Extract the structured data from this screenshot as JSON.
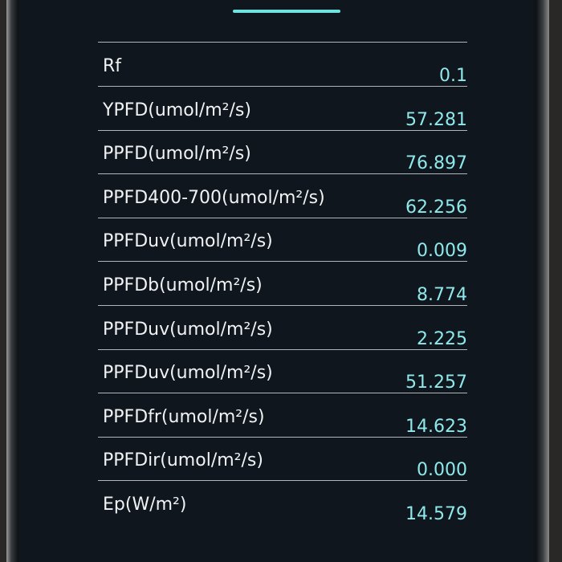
{
  "rows": [
    {
      "label": "Rf",
      "value": "0.1"
    },
    {
      "label": "YPFD(umol/m²/s)",
      "value": "57.281"
    },
    {
      "label": "PPFD(umol/m²/s)",
      "value": "76.897"
    },
    {
      "label": "PPFD400-700(umol/m²/s)",
      "value": "62.256"
    },
    {
      "label": "PPFDuv(umol/m²/s)",
      "value": "0.009"
    },
    {
      "label": "PPFDb(umol/m²/s)",
      "value": "8.774"
    },
    {
      "label": "PPFDuv(umol/m²/s)",
      "value": "2.225"
    },
    {
      "label": "PPFDuv(umol/m²/s)",
      "value": "51.257"
    },
    {
      "label": "PPFDfr(umol/m²/s)",
      "value": "14.623"
    },
    {
      "label": "PPFDir(umol/m²/s)",
      "value": "0.000"
    },
    {
      "label": "Ep(W/m²)",
      "value": "14.579"
    }
  ]
}
